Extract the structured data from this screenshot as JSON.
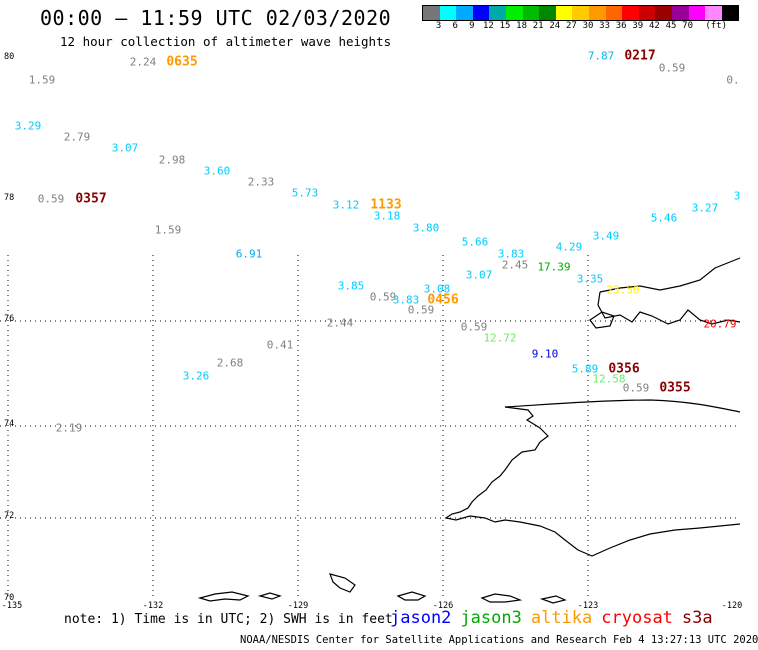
{
  "title": "00:00 – 11:59 UTC 02/03/2020",
  "subtitle": "12 hour collection of altimeter wave heights",
  "legend": {
    "colors": [
      "#777777",
      "#00ffff",
      "#00aaff",
      "#0000ff",
      "#00aaaa",
      "#00ee00",
      "#00bb00",
      "#008800",
      "#ffff00",
      "#ffcc00",
      "#ff9900",
      "#ff6600",
      "#ff0000",
      "#cc0000",
      "#990000",
      "#990099",
      "#ff00ff",
      "#ff88ff",
      "#000000"
    ],
    "ticks": [
      "3",
      "6",
      "9",
      "12",
      "15",
      "18",
      "21",
      "24",
      "27",
      "30",
      "33",
      "36",
      "39",
      "42",
      "45",
      "70",
      "(ft)"
    ]
  },
  "lat_labels": [
    "80",
    "78",
    "76",
    "74",
    "72",
    "70"
  ],
  "lon_labels": [
    "-135",
    "-132",
    "-129",
    "-126",
    "-123",
    "-120"
  ],
  "observations": [
    {
      "v": "1.59",
      "c": "#808080"
    },
    {
      "v": "2.24",
      "c": "#808080"
    },
    {
      "v": "7.87",
      "c": "#00b8e6"
    },
    {
      "v": "0.59",
      "c": "#808080"
    },
    {
      "v": "0.",
      "c": "#808080"
    },
    {
      "v": "3.29",
      "c": "#00ccff"
    },
    {
      "v": "2.79",
      "c": "#808080"
    },
    {
      "v": "3.07",
      "c": "#00ccff"
    },
    {
      "v": "2.98",
      "c": "#808080"
    },
    {
      "v": "3.60",
      "c": "#00ccff"
    },
    {
      "v": "2.33",
      "c": "#808080"
    },
    {
      "v": "5.73",
      "c": "#00ccff"
    },
    {
      "v": "3.12",
      "c": "#00ccff"
    },
    {
      "v": "3.18",
      "c": "#00ccff"
    },
    {
      "v": "0.59",
      "c": "#808080"
    },
    {
      "v": "3.80",
      "c": "#00ccff"
    },
    {
      "v": "5.66",
      "c": "#00ccff"
    },
    {
      "v": "4.29",
      "c": "#00ccff"
    },
    {
      "v": "3.49",
      "c": "#00ccff"
    },
    {
      "v": "5.46",
      "c": "#00ccff"
    },
    {
      "v": "3.27",
      "c": "#00ccff"
    },
    {
      "v": "3",
      "c": "#00ccff"
    },
    {
      "v": "1.59",
      "c": "#808080"
    },
    {
      "v": "6.91",
      "c": "#00aaee"
    },
    {
      "v": "3.83",
      "c": "#00ccff"
    },
    {
      "v": "2.45",
      "c": "#808080"
    },
    {
      "v": "17.39",
      "c": "#00aa00"
    },
    {
      "v": "3.07",
      "c": "#00ccff"
    },
    {
      "v": "3.35",
      "c": "#00ccff"
    },
    {
      "v": "23.50",
      "c": "#ffee00"
    },
    {
      "v": "3.85",
      "c": "#00ccff"
    },
    {
      "v": "0.59",
      "c": "#808080"
    },
    {
      "v": "3.83",
      "c": "#00ccff"
    },
    {
      "v": "3.08",
      "c": "#00ccff"
    },
    {
      "v": "0.59",
      "c": "#808080"
    },
    {
      "v": "2.44",
      "c": "#808080"
    },
    {
      "v": "0.59",
      "c": "#808080"
    },
    {
      "v": "12.72",
      "c": "#66ee66"
    },
    {
      "v": "20.79",
      "c": "#ff0000"
    },
    {
      "v": "0.41",
      "c": "#808080"
    },
    {
      "v": "9.10",
      "c": "#0000dd"
    },
    {
      "v": "2.68",
      "c": "#808080"
    },
    {
      "v": "5.89",
      "c": "#00ccff"
    },
    {
      "v": "3.26",
      "c": "#00ccff"
    },
    {
      "v": "12.58",
      "c": "#66ee66"
    },
    {
      "v": "0.59",
      "c": "#808080"
    },
    {
      "v": "2.19",
      "c": "#808080"
    }
  ],
  "times": [
    {
      "v": "0635",
      "c": "#ff9900"
    },
    {
      "v": "0217",
      "c": "#880000"
    },
    {
      "v": "0357",
      "c": "#880000"
    },
    {
      "v": "1133",
      "c": "#ff9900"
    },
    {
      "v": "0456",
      "c": "#ff9900"
    },
    {
      "v": "0356",
      "c": "#880000"
    },
    {
      "v": "0355",
      "c": "#880000"
    }
  ],
  "note": "note: 1) Time is in UTC; 2) SWH is in feet",
  "satellites": [
    {
      "name": "jason2",
      "color": "#0000ff"
    },
    {
      "name": "jason3",
      "color": "#00aa00"
    },
    {
      "name": "altika",
      "color": "#ff9900"
    },
    {
      "name": "cryosat",
      "color": "#ff0000"
    },
    {
      "name": "s3a",
      "color": "#880000"
    }
  ],
  "footer": "NOAA/NESDIS Center for Satellite Applications and Research   Feb  4 13:27:13 UTC 2020"
}
